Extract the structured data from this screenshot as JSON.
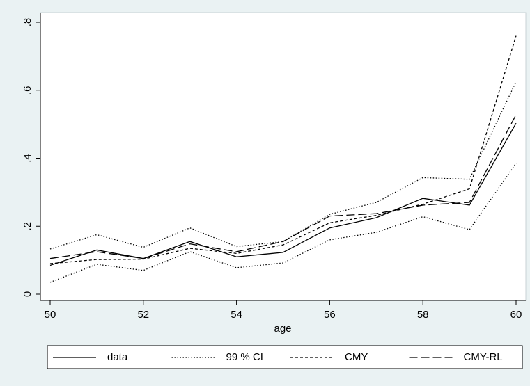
{
  "chart_data": {
    "type": "line",
    "x_label": "age",
    "x": [
      50,
      51,
      52,
      53,
      54,
      55,
      56,
      57,
      58,
      59,
      60
    ],
    "xlim": [
      50,
      60
    ],
    "xticks": [
      50,
      52,
      54,
      56,
      58,
      60
    ],
    "ylim": [
      0,
      0.8
    ],
    "yticks": [
      0,
      {
        "value": 0.2,
        "label": ".2"
      },
      {
        "value": 0.4,
        "label": ".4"
      },
      {
        "value": 0.6,
        "label": ".6"
      },
      {
        "value": 0.8,
        "label": ".8"
      }
    ],
    "legend": "bottom",
    "series": [
      {
        "name": "data",
        "color": "#000000",
        "style": "solid",
        "values": [
          0.085,
          0.13,
          0.105,
          0.155,
          0.11,
          0.123,
          0.195,
          0.225,
          0.282,
          0.262,
          0.503
        ]
      },
      {
        "name": "99 % CI",
        "color": "#000000",
        "style": "dotted",
        "lower": [
          0.035,
          0.088,
          0.07,
          0.125,
          0.078,
          0.092,
          0.16,
          0.182,
          0.228,
          0.19,
          0.385
        ],
        "upper": [
          0.133,
          0.175,
          0.138,
          0.195,
          0.14,
          0.155,
          0.235,
          0.27,
          0.343,
          0.338,
          0.625
        ]
      },
      {
        "name": "CMY",
        "color": "#000000",
        "style": "dashed",
        "values": [
          0.09,
          0.102,
          0.103,
          0.135,
          0.12,
          0.145,
          0.21,
          0.232,
          0.265,
          0.31,
          0.76
        ]
      },
      {
        "name": "CMY-RL",
        "color": "#000000",
        "style": "longdash",
        "values": [
          0.105,
          0.125,
          0.105,
          0.148,
          0.125,
          0.155,
          0.23,
          0.237,
          0.262,
          0.27,
          0.528
        ]
      }
    ]
  }
}
